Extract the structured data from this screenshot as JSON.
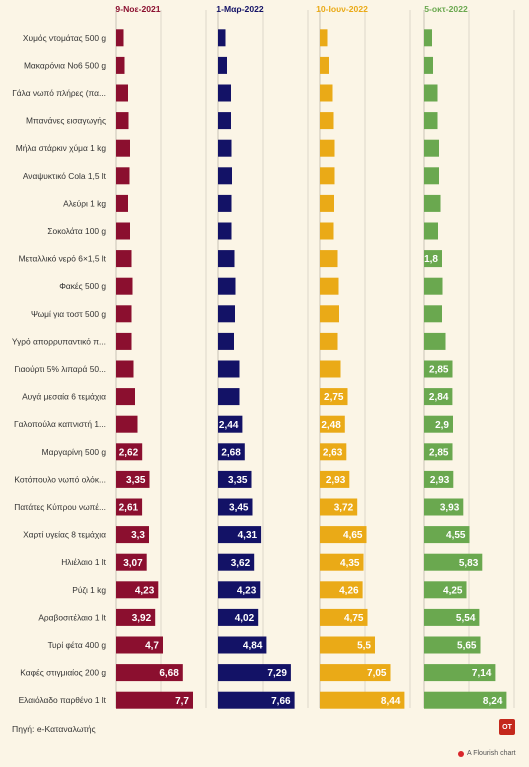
{
  "chart_data": {
    "type": "bar",
    "orientation": "horizontal",
    "layout": "small-multiples",
    "categories": [
      "Χυμός ντομάτας 500 g",
      "Μακαρόνια Νο6 500 g",
      "Γάλα νωπό πλήρες (πα...",
      "Μπανάνες εισαγωγής",
      "Μήλα στάρκιν χύμα 1 kg",
      "Αναψυκτικό Cola 1,5 lt",
      "Αλεύρι 1 kg",
      "Σοκολάτα 100 g",
      "Μεταλλικό νερό 6×1,5 lt",
      "Φακές 500 g",
      "Ψωμί για τοστ 500 g",
      "Υγρό απορρυπαντικό π...",
      "Γιαούρτι 5% λιπαρά 50...",
      "Αυγά μεσαία 6 τεμάχια",
      "Γαλοπούλα καπνιστή 1...",
      "Μαργαρίνη 500 g",
      "Κοτόπουλο νωπό ολόκ...",
      "Πατάτες Κύπρου νωπέ...",
      "Χαρτί υγείας 8 τεμάχια",
      "Ηλιέλαιο 1 lt",
      "Ρύζι 1 kg",
      "Αραβοσιτέλαιο 1 lt",
      "Τυρί φέτα 400 g",
      "Καφές στιγμιαίος 200 g",
      "Ελαιόλαδο παρθένο 1 lt"
    ],
    "series": [
      {
        "name": "9-Νοε-2021",
        "color": "#8b0f2f",
        "values": [
          0.75,
          0.85,
          1.2,
          1.25,
          1.4,
          1.35,
          1.2,
          1.4,
          1.55,
          1.65,
          1.55,
          1.55,
          1.75,
          1.9,
          2.15,
          2.62,
          3.35,
          2.61,
          3.3,
          3.07,
          4.23,
          3.92,
          4.7,
          6.68,
          7.7
        ],
        "labels": [
          null,
          null,
          null,
          null,
          null,
          null,
          null,
          null,
          null,
          null,
          null,
          null,
          null,
          null,
          null,
          "2,62",
          "3,35",
          "2,61",
          "3,3",
          "3,07",
          "4,23",
          "3,92",
          "4,7",
          "6,68",
          "7,7"
        ]
      },
      {
        "name": "1-Μαρ-2022",
        "color": "#131266",
        "values": [
          0.75,
          0.9,
          1.3,
          1.3,
          1.35,
          1.4,
          1.35,
          1.35,
          1.65,
          1.75,
          1.7,
          1.6,
          2.15,
          2.15,
          2.44,
          2.68,
          3.35,
          3.45,
          4.31,
          3.62,
          4.23,
          4.02,
          4.84,
          7.29,
          7.66
        ],
        "labels": [
          null,
          null,
          null,
          null,
          null,
          null,
          null,
          null,
          null,
          null,
          null,
          null,
          null,
          null,
          "2,44",
          "2,68",
          "3,35",
          "3,45",
          "4,31",
          "3,62",
          "4,23",
          "4,02",
          "4,84",
          "7,29",
          "7,66"
        ]
      },
      {
        "name": "10-Ιουν-2022",
        "color": "#eaaa17",
        "values": [
          0.75,
          0.9,
          1.25,
          1.35,
          1.45,
          1.45,
          1.4,
          1.35,
          1.75,
          1.85,
          1.9,
          1.75,
          2.05,
          2.75,
          2.48,
          2.63,
          2.93,
          3.72,
          4.65,
          4.35,
          4.26,
          4.75,
          5.5,
          7.05,
          8.44
        ],
        "labels": [
          null,
          null,
          null,
          null,
          null,
          null,
          null,
          null,
          null,
          null,
          null,
          null,
          null,
          "2,75",
          "2,48",
          "2,63",
          "2,93",
          "3,72",
          "4,65",
          "4,35",
          "4,26",
          "4,75",
          "5,5",
          "7,05",
          "8,44"
        ]
      },
      {
        "name": "5-οκτ-2022",
        "color": "#6aa84f",
        "values": [
          0.8,
          0.9,
          1.35,
          1.35,
          1.5,
          1.5,
          1.65,
          1.4,
          1.8,
          1.85,
          1.8,
          2.15,
          2.85,
          2.84,
          2.9,
          2.85,
          2.93,
          3.93,
          4.55,
          5.83,
          4.25,
          5.54,
          5.65,
          7.14,
          8.24
        ],
        "labels": [
          null,
          null,
          null,
          null,
          null,
          null,
          null,
          null,
          "1,8",
          null,
          null,
          null,
          "2,85",
          "2,84",
          "2,9",
          "2,85",
          "2,93",
          "3,93",
          "4,55",
          "5,83",
          "4,25",
          "5,54",
          "5,65",
          "7,14",
          "8,24"
        ]
      }
    ],
    "xlim": [
      0,
      9
    ],
    "grid": true,
    "source": "Πηγή: e-Καταναλωτής",
    "logo_text": "ΟΤ",
    "credit": "A Flourish chart"
  }
}
